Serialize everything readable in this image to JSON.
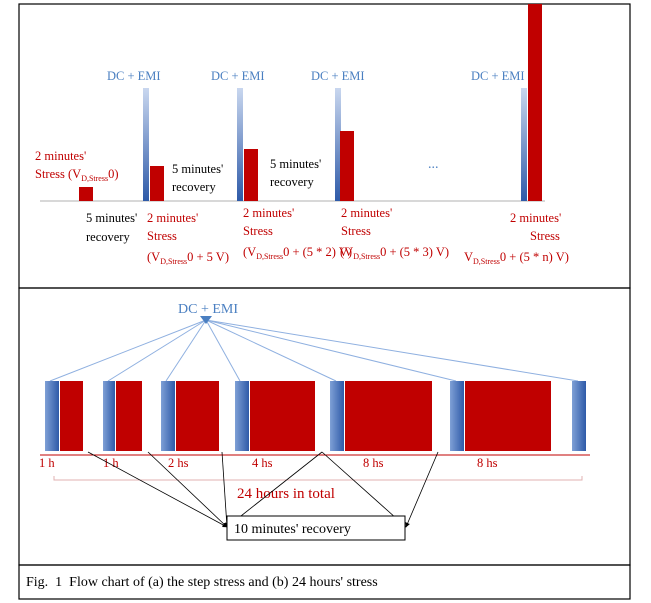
{
  "panel_a": {
    "dc_emi_label": "DC + EMI",
    "ellipsis": "...",
    "initial_stress": {
      "line1": "2 minutes'",
      "line2_pre": "Stress (V",
      "line2_sub": "D,Stress",
      "line2_post": "0)"
    },
    "recovery_label": {
      "line1": "5 minutes'",
      "line2": "recovery"
    },
    "steps": [
      {
        "line1": "2 minutes'",
        "line2": "Stress",
        "line3_pre": "(V",
        "line3_sub": "D,Stress",
        "line3_post": "0 + 5 V)"
      },
      {
        "line1": "2 minutes'",
        "line2": "Stress",
        "line3_pre": "(V",
        "line3_sub": "D,Stress",
        "line3_post": "0 + (5 * 2) V)"
      },
      {
        "line1": "2 minutes'",
        "line2": "Stress",
        "line3_pre": "(V",
        "line3_sub": "D,Stress",
        "line3_post": "0 + (5 * 3) V)"
      },
      {
        "line1": "2 minutes'",
        "line2": "Stress",
        "line3_pre": "V",
        "line3_sub": "D,Stress",
        "line3_post": "0 + (5 * n) V)"
      }
    ]
  },
  "panel_b": {
    "dc_emi_label": "DC + EMI",
    "durations": [
      "1 h",
      "1 h",
      "2 hs",
      "4 hs",
      "8 hs",
      "8 hs"
    ],
    "total_label": "24 hours in total",
    "recovery_box": "10 minutes' recovery"
  },
  "caption": "Fig.  1  Flow chart of (a) the step stress and (b) 24 hours' stress",
  "colors": {
    "dc_bar_top": "#2e5aa8",
    "dc_bar_light": "#c9d7ef",
    "stress_bar": "#c00000",
    "dc_label": "#4a7fc1",
    "stress_label": "#c00000"
  }
}
